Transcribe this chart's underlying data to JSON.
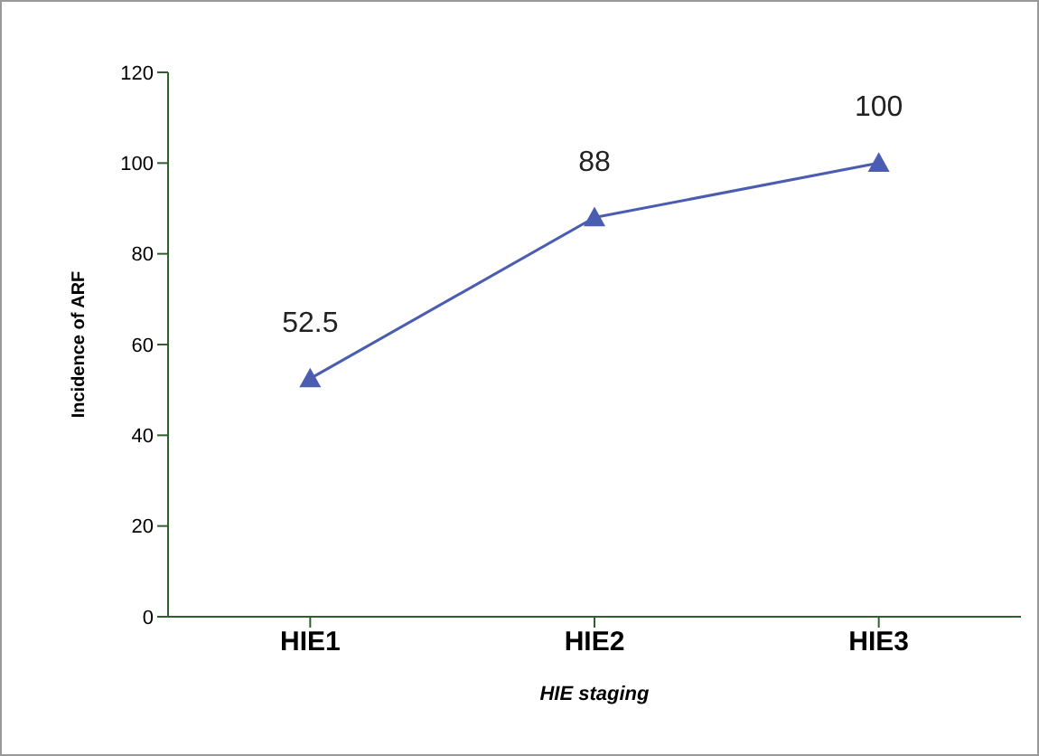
{
  "chart_data": {
    "type": "line",
    "xlabel": "HIE staging",
    "ylabel": "Incidence of ARF",
    "categories": [
      "HIE1",
      "HIE2",
      "HIE3"
    ],
    "values": [
      52.5,
      88,
      100
    ],
    "color": "#4a5db0",
    "ylim": [
      0,
      120
    ],
    "yticks": [
      0,
      20,
      40,
      60,
      80,
      100,
      120
    ],
    "data_labels": true,
    "marker": "triangle",
    "grid": false,
    "legend": false
  }
}
